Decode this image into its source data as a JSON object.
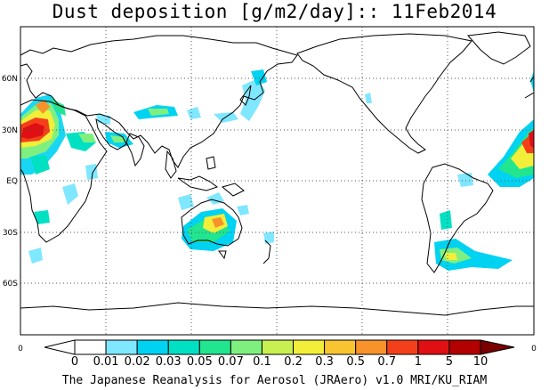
{
  "title": "Dust deposition [g/m2/day]:: 11Feb2014",
  "footer": "The Japanese Reanalysis for Aerosol (JRAero) v1.0 MRI/KU_RIAM",
  "lat_labels": [
    "60N",
    "30N",
    "EQ",
    "30S",
    "60S"
  ],
  "lon_edge_label": "0",
  "colorbar": {
    "labels": [
      "0",
      "0.01",
      "0.02",
      "0.03",
      "0.05",
      "0.07",
      "0.1",
      "0.2",
      "0.3",
      "0.5",
      "0.7",
      "1",
      "5",
      "10"
    ],
    "colors": [
      "#ffffff",
      "#ffffff",
      "#7fe7ff",
      "#00d3f2",
      "#00e1c4",
      "#22e58f",
      "#7ff07f",
      "#c8f050",
      "#f2ee3a",
      "#f8c531",
      "#f8922b",
      "#f3401b",
      "#df0f14",
      "#b30000",
      "#7a0000"
    ]
  },
  "map": {
    "projection": "Equirectangular, centered 180E",
    "grid": "dotted every 30 degrees",
    "variable": "Dust deposition",
    "units": "g/m2/day",
    "date": "11Feb2014"
  },
  "colors": {
    "coast": "#000000",
    "grid": "#555555",
    "frame": "#000000"
  }
}
